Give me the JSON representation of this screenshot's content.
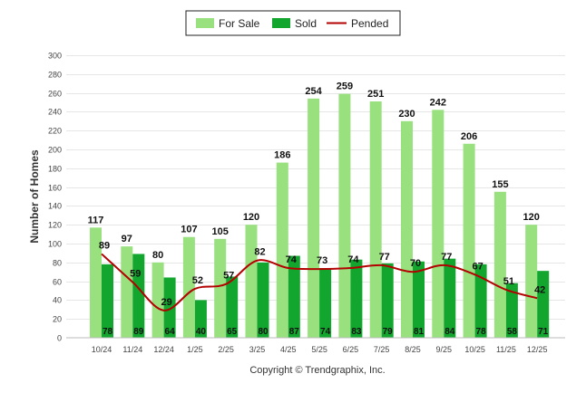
{
  "chart_data": {
    "type": "bar",
    "categories": [
      "10/24",
      "11/24",
      "12/24",
      "1/25",
      "2/25",
      "3/25",
      "4/25",
      "5/25",
      "6/25",
      "7/25",
      "8/25",
      "9/25",
      "10/25",
      "11/25",
      "12/25"
    ],
    "series": [
      {
        "name": "For Sale",
        "type": "bar",
        "color": "#99e07f",
        "values": [
          117,
          97,
          80,
          107,
          105,
          120,
          186,
          254,
          259,
          251,
          230,
          242,
          206,
          155,
          120
        ]
      },
      {
        "name": "Sold",
        "type": "bar",
        "color": "#12a62e",
        "values": [
          78,
          89,
          64,
          40,
          65,
          80,
          87,
          74,
          83,
          79,
          81,
          84,
          78,
          58,
          71
        ]
      },
      {
        "name": "Pended",
        "type": "line",
        "color": "#b30000",
        "values": [
          89,
          59,
          29,
          52,
          57,
          82,
          74,
          73,
          74,
          77,
          70,
          77,
          67,
          51,
          42
        ]
      }
    ],
    "ylabel": "Number of Homes",
    "ylim": [
      0,
      300
    ],
    "yticks": [
      0,
      20,
      40,
      60,
      80,
      100,
      120,
      140,
      160,
      180,
      200,
      220,
      240,
      260,
      280,
      300
    ],
    "grid": true,
    "legend_position": "top-center"
  },
  "footer": {
    "copyright": "Copyright © Trendgraphix, Inc."
  }
}
